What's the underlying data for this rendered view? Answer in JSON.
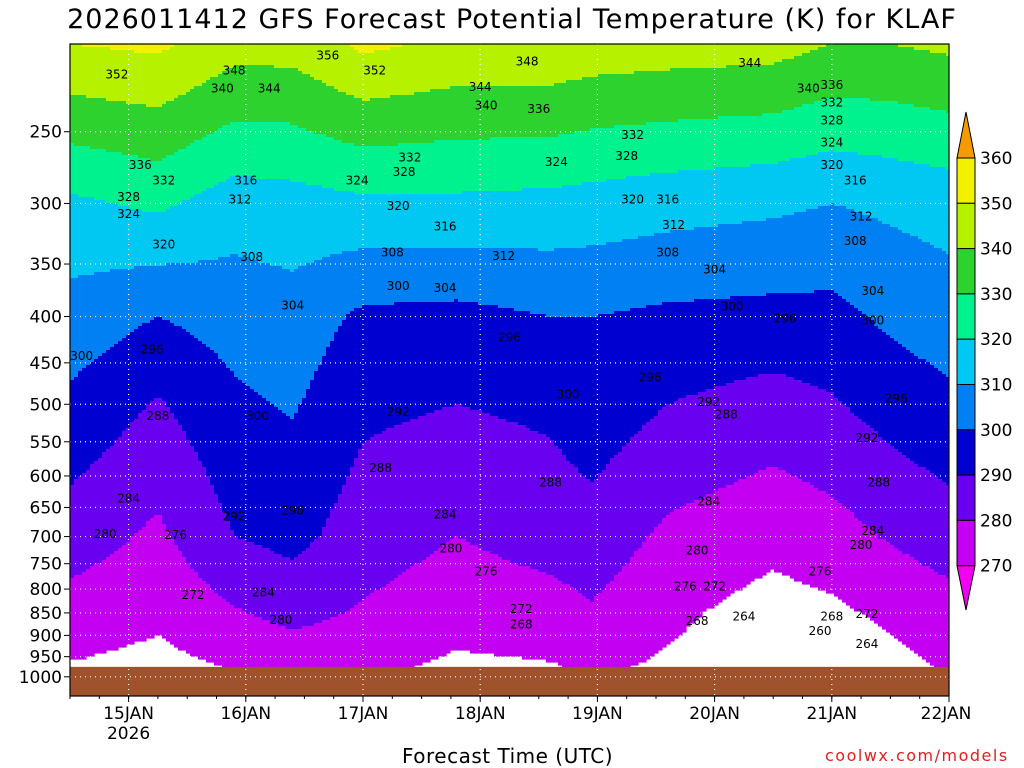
{
  "chart_data": {
    "type": "heatmap",
    "title": "2026011412 GFS Forecast Potential Temperature (K) for KLAF",
    "xlabel": "Forecast Time (UTC)",
    "x_tick_labels": [
      {
        "day": "15JAN",
        "year": "2026"
      },
      {
        "day": "16JAN",
        "year": ""
      },
      {
        "day": "17JAN",
        "year": ""
      },
      {
        "day": "18JAN",
        "year": ""
      },
      {
        "day": "19JAN",
        "year": ""
      },
      {
        "day": "20JAN",
        "year": ""
      },
      {
        "day": "21JAN",
        "year": ""
      },
      {
        "day": "22JAN",
        "year": ""
      }
    ],
    "y_ticks": [
      250,
      300,
      350,
      400,
      450,
      500,
      550,
      600,
      650,
      700,
      750,
      800,
      850,
      900,
      950,
      1000
    ],
    "y_scale": "log",
    "y_range": [
      200,
      1050
    ],
    "grid": true,
    "legend": {
      "placement": "right",
      "levels": [
        360,
        350,
        340,
        330,
        320,
        310,
        300,
        290,
        280,
        270
      ],
      "colors": [
        "#f59a00",
        "#f2f200",
        "#b6f200",
        "#2ed22e",
        "#00f28e",
        "#00c8f2",
        "#0080f2",
        "#0000d0",
        "#6a00f0",
        "#c400f2",
        "#f200f2"
      ]
    },
    "field": {
      "day_start": 14.5,
      "day_end": 22.0,
      "profiles": [
        {
          "day": 14.5,
          "levels": [
            {
              "p": 1000,
              "theta": 268
            },
            {
              "p": 850,
              "theta": 276
            },
            {
              "p": 700,
              "theta": 285
            },
            {
              "p": 500,
              "theta": 298
            },
            {
              "p": 400,
              "theta": 306
            },
            {
              "p": 300,
              "theta": 318
            },
            {
              "p": 200,
              "theta": 350
            }
          ]
        },
        {
          "day": 15.25,
          "levels": [
            {
              "p": 1000,
              "theta": 266
            },
            {
              "p": 850,
              "theta": 272
            },
            {
              "p": 700,
              "theta": 278
            },
            {
              "p": 500,
              "theta": 289
            },
            {
              "p": 400,
              "theta": 300
            },
            {
              "p": 300,
              "theta": 322
            },
            {
              "p": 200,
              "theta": 352
            }
          ]
        },
        {
          "day": 15.9,
          "levels": [
            {
              "p": 1000,
              "theta": 269
            },
            {
              "p": 850,
              "theta": 279
            },
            {
              "p": 700,
              "theta": 290
            },
            {
              "p": 500,
              "theta": 298
            },
            {
              "p": 400,
              "theta": 304
            },
            {
              "p": 300,
              "theta": 315
            },
            {
              "p": 200,
              "theta": 344
            }
          ]
        },
        {
          "day": 16.4,
          "levels": [
            {
              "p": 1000,
              "theta": 272
            },
            {
              "p": 850,
              "theta": 283
            },
            {
              "p": 700,
              "theta": 293
            },
            {
              "p": 500,
              "theta": 301
            },
            {
              "p": 400,
              "theta": 306
            },
            {
              "p": 300,
              "theta": 316
            },
            {
              "p": 200,
              "theta": 344
            }
          ]
        },
        {
          "day": 17.0,
          "levels": [
            {
              "p": 1000,
              "theta": 271
            },
            {
              "p": 850,
              "theta": 279
            },
            {
              "p": 700,
              "theta": 285
            },
            {
              "p": 500,
              "theta": 292
            },
            {
              "p": 400,
              "theta": 298
            },
            {
              "p": 300,
              "theta": 318
            },
            {
              "p": 200,
              "theta": 352
            }
          ]
        },
        {
          "day": 17.8,
          "levels": [
            {
              "p": 1000,
              "theta": 267
            },
            {
              "p": 850,
              "theta": 274
            },
            {
              "p": 700,
              "theta": 280
            },
            {
              "p": 500,
              "theta": 290
            },
            {
              "p": 400,
              "theta": 297
            },
            {
              "p": 300,
              "theta": 318
            },
            {
              "p": 200,
              "theta": 348
            }
          ]
        },
        {
          "day": 18.6,
          "levels": [
            {
              "p": 1000,
              "theta": 268
            },
            {
              "p": 850,
              "theta": 276
            },
            {
              "p": 700,
              "theta": 284
            },
            {
              "p": 500,
              "theta": 292
            },
            {
              "p": 400,
              "theta": 300
            },
            {
              "p": 300,
              "theta": 317
            },
            {
              "p": 200,
              "theta": 348
            }
          ]
        },
        {
          "day": 18.95,
          "levels": [
            {
              "p": 1000,
              "theta": 270
            },
            {
              "p": 850,
              "theta": 279
            },
            {
              "p": 700,
              "theta": 286
            },
            {
              "p": 500,
              "theta": 296
            },
            {
              "p": 400,
              "theta": 300
            },
            {
              "p": 300,
              "theta": 316
            },
            {
              "p": 200,
              "theta": 346
            }
          ]
        },
        {
          "day": 19.6,
          "levels": [
            {
              "p": 1000,
              "theta": 268
            },
            {
              "p": 850,
              "theta": 272
            },
            {
              "p": 700,
              "theta": 278
            },
            {
              "p": 500,
              "theta": 290
            },
            {
              "p": 400,
              "theta": 298
            },
            {
              "p": 300,
              "theta": 314
            },
            {
              "p": 200,
              "theta": 345
            }
          ]
        },
        {
          "day": 20.5,
          "levels": [
            {
              "p": 1000,
              "theta": 263
            },
            {
              "p": 850,
              "theta": 266
            },
            {
              "p": 700,
              "theta": 273
            },
            {
              "p": 500,
              "theta": 286
            },
            {
              "p": 400,
              "theta": 297
            },
            {
              "p": 300,
              "theta": 312
            },
            {
              "p": 200,
              "theta": 344
            }
          ]
        },
        {
          "day": 21.0,
          "levels": [
            {
              "p": 1000,
              "theta": 263
            },
            {
              "p": 850,
              "theta": 268
            },
            {
              "p": 700,
              "theta": 276
            },
            {
              "p": 500,
              "theta": 289
            },
            {
              "p": 400,
              "theta": 297
            },
            {
              "p": 300,
              "theta": 310
            },
            {
              "p": 200,
              "theta": 340
            }
          ]
        },
        {
          "day": 21.5,
          "levels": [
            {
              "p": 1000,
              "theta": 266
            },
            {
              "p": 850,
              "theta": 272
            },
            {
              "p": 700,
              "theta": 281
            },
            {
              "p": 500,
              "theta": 294
            },
            {
              "p": 400,
              "theta": 302
            },
            {
              "p": 300,
              "theta": 312
            },
            {
              "p": 200,
              "theta": 340
            }
          ]
        },
        {
          "day": 22.0,
          "levels": [
            {
              "p": 1000,
              "theta": 270
            },
            {
              "p": 850,
              "theta": 276
            },
            {
              "p": 700,
              "theta": 285
            },
            {
              "p": 500,
              "theta": 298
            },
            {
              "p": 400,
              "theta": 305
            },
            {
              "p": 300,
              "theta": 314
            },
            {
              "p": 200,
              "theta": 342
            }
          ]
        }
      ],
      "terrain_pressure": 975
    },
    "contour_labels": [
      {
        "text": "356",
        "day": 16.7,
        "p": 206
      },
      {
        "text": "352",
        "day": 14.9,
        "p": 216
      },
      {
        "text": "352",
        "day": 17.1,
        "p": 214
      },
      {
        "text": "348",
        "day": 15.9,
        "p": 214
      },
      {
        "text": "348",
        "day": 18.4,
        "p": 209
      },
      {
        "text": "344",
        "day": 20.3,
        "p": 210
      },
      {
        "text": "340",
        "day": 15.8,
        "p": 224
      },
      {
        "text": "344",
        "day": 16.2,
        "p": 224
      },
      {
        "text": "344",
        "day": 18.0,
        "p": 223
      },
      {
        "text": "340",
        "day": 18.05,
        "p": 234
      },
      {
        "text": "336",
        "day": 18.5,
        "p": 236
      },
      {
        "text": "340",
        "day": 20.8,
        "p": 224
      },
      {
        "text": "336",
        "day": 21.0,
        "p": 222
      },
      {
        "text": "332",
        "day": 21.0,
        "p": 232
      },
      {
        "text": "328",
        "day": 21.0,
        "p": 243
      },
      {
        "text": "324",
        "day": 21.0,
        "p": 257
      },
      {
        "text": "320",
        "day": 21.0,
        "p": 272
      },
      {
        "text": "316",
        "day": 21.2,
        "p": 283
      },
      {
        "text": "336",
        "day": 15.1,
        "p": 272
      },
      {
        "text": "332",
        "day": 15.3,
        "p": 283
      },
      {
        "text": "328",
        "day": 15.0,
        "p": 295
      },
      {
        "text": "324",
        "day": 15.0,
        "p": 308
      },
      {
        "text": "320",
        "day": 15.3,
        "p": 333
      },
      {
        "text": "316",
        "day": 16.0,
        "p": 283
      },
      {
        "text": "312",
        "day": 15.95,
        "p": 297
      },
      {
        "text": "324",
        "day": 16.95,
        "p": 283
      },
      {
        "text": "332",
        "day": 17.4,
        "p": 267
      },
      {
        "text": "328",
        "day": 17.35,
        "p": 277
      },
      {
        "text": "320",
        "day": 17.3,
        "p": 302
      },
      {
        "text": "316",
        "day": 17.7,
        "p": 318
      },
      {
        "text": "324",
        "day": 18.65,
        "p": 270
      },
      {
        "text": "332",
        "day": 19.3,
        "p": 252
      },
      {
        "text": "328",
        "day": 19.25,
        "p": 266
      },
      {
        "text": "320",
        "day": 19.3,
        "p": 297
      },
      {
        "text": "316",
        "day": 19.6,
        "p": 297
      },
      {
        "text": "312",
        "day": 19.65,
        "p": 317
      },
      {
        "text": "312",
        "day": 18.2,
        "p": 343
      },
      {
        "text": "308",
        "day": 16.05,
        "p": 344
      },
      {
        "text": "308",
        "day": 17.25,
        "p": 340
      },
      {
        "text": "300",
        "day": 17.3,
        "p": 370
      },
      {
        "text": "304",
        "day": 17.7,
        "p": 372
      },
      {
        "text": "304",
        "day": 16.4,
        "p": 389
      },
      {
        "text": "308",
        "day": 19.6,
        "p": 340
      },
      {
        "text": "304",
        "day": 20.0,
        "p": 355
      },
      {
        "text": "300",
        "day": 20.15,
        "p": 390
      },
      {
        "text": "296",
        "day": 20.6,
        "p": 402
      },
      {
        "text": "312",
        "day": 21.25,
        "p": 310
      },
      {
        "text": "308",
        "day": 21.2,
        "p": 330
      },
      {
        "text": "304",
        "day": 21.35,
        "p": 375
      },
      {
        "text": "300",
        "day": 21.35,
        "p": 404
      },
      {
        "text": "296",
        "day": 21.55,
        "p": 493
      },
      {
        "text": "296",
        "day": 18.25,
        "p": 422
      },
      {
        "text": "300",
        "day": 14.6,
        "p": 442
      },
      {
        "text": "296",
        "day": 15.2,
        "p": 435
      },
      {
        "text": "300",
        "day": 18.75,
        "p": 488
      },
      {
        "text": "296",
        "day": 19.45,
        "p": 467
      },
      {
        "text": "292",
        "day": 19.95,
        "p": 497
      },
      {
        "text": "292",
        "day": 17.3,
        "p": 510
      },
      {
        "text": "288",
        "day": 15.25,
        "p": 515
      },
      {
        "text": "300",
        "day": 16.1,
        "p": 515
      },
      {
        "text": "288",
        "day": 20.1,
        "p": 513
      },
      {
        "text": "292",
        "day": 21.3,
        "p": 545
      },
      {
        "text": "288",
        "day": 21.4,
        "p": 610
      },
      {
        "text": "288",
        "day": 17.15,
        "p": 588
      },
      {
        "text": "288",
        "day": 18.6,
        "p": 610
      },
      {
        "text": "284",
        "day": 15.0,
        "p": 635
      },
      {
        "text": "284",
        "day": 19.95,
        "p": 640
      },
      {
        "text": "292",
        "day": 15.9,
        "p": 665
      },
      {
        "text": "296",
        "day": 16.4,
        "p": 655
      },
      {
        "text": "284",
        "day": 17.7,
        "p": 662
      },
      {
        "text": "284",
        "day": 21.35,
        "p": 690
      },
      {
        "text": "280",
        "day": 21.25,
        "p": 715
      },
      {
        "text": "280",
        "day": 14.8,
        "p": 695
      },
      {
        "text": "276",
        "day": 15.4,
        "p": 697
      },
      {
        "text": "280",
        "day": 17.75,
        "p": 722
      },
      {
        "text": "280",
        "day": 19.85,
        "p": 725
      },
      {
        "text": "276",
        "day": 18.05,
        "p": 765
      },
      {
        "text": "276",
        "day": 20.9,
        "p": 765
      },
      {
        "text": "276",
        "day": 19.75,
        "p": 795
      },
      {
        "text": "272",
        "day": 20.0,
        "p": 795
      },
      {
        "text": "272",
        "day": 15.55,
        "p": 812
      },
      {
        "text": "284",
        "day": 16.15,
        "p": 807
      },
      {
        "text": "272",
        "day": 18.35,
        "p": 842
      },
      {
        "text": "280",
        "day": 16.3,
        "p": 865
      },
      {
        "text": "268",
        "day": 18.35,
        "p": 875
      },
      {
        "text": "268",
        "day": 19.85,
        "p": 868
      },
      {
        "text": "264",
        "day": 20.25,
        "p": 858
      },
      {
        "text": "268",
        "day": 21.0,
        "p": 858
      },
      {
        "text": "272",
        "day": 21.3,
        "p": 852
      },
      {
        "text": "260",
        "day": 20.9,
        "p": 890
      },
      {
        "text": "264",
        "day": 21.3,
        "p": 920
      }
    ]
  },
  "credit": "coolwx.com/models"
}
